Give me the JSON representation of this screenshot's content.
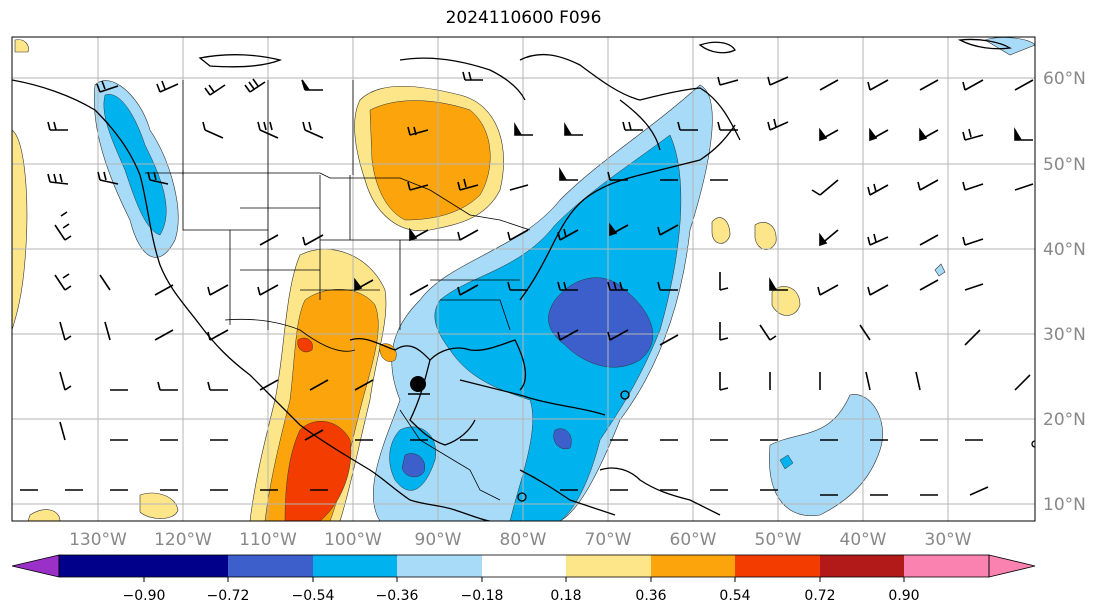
{
  "title": "2024110600 F096",
  "lon_labels": [
    "130°W",
    "120°W",
    "110°W",
    "100°W",
    "90°W",
    "80°W",
    "70°W",
    "60°W",
    "50°W",
    "40°W",
    "30°W"
  ],
  "lat_labels": [
    "60°N",
    "50°N",
    "40°N",
    "30°N",
    "20°N",
    "10°N"
  ],
  "colorbar": {
    "colors": [
      "#9b30c9",
      "#00008b",
      "#3d5fcc",
      "#00b2ee",
      "#a8dbf8",
      "#ffffff",
      "#fde68a",
      "#fca40c",
      "#f33d00",
      "#b21a1a",
      "#fa82b0"
    ],
    "tick_labels": [
      "−0.90",
      "−0.72",
      "−0.54",
      "−0.36",
      "−0.18",
      "0.18",
      "0.36",
      "0.54",
      "0.72",
      "0.90"
    ]
  },
  "colors": {
    "grid": "#b5b5b5",
    "label": "#888888",
    "coast": "#000000"
  }
}
